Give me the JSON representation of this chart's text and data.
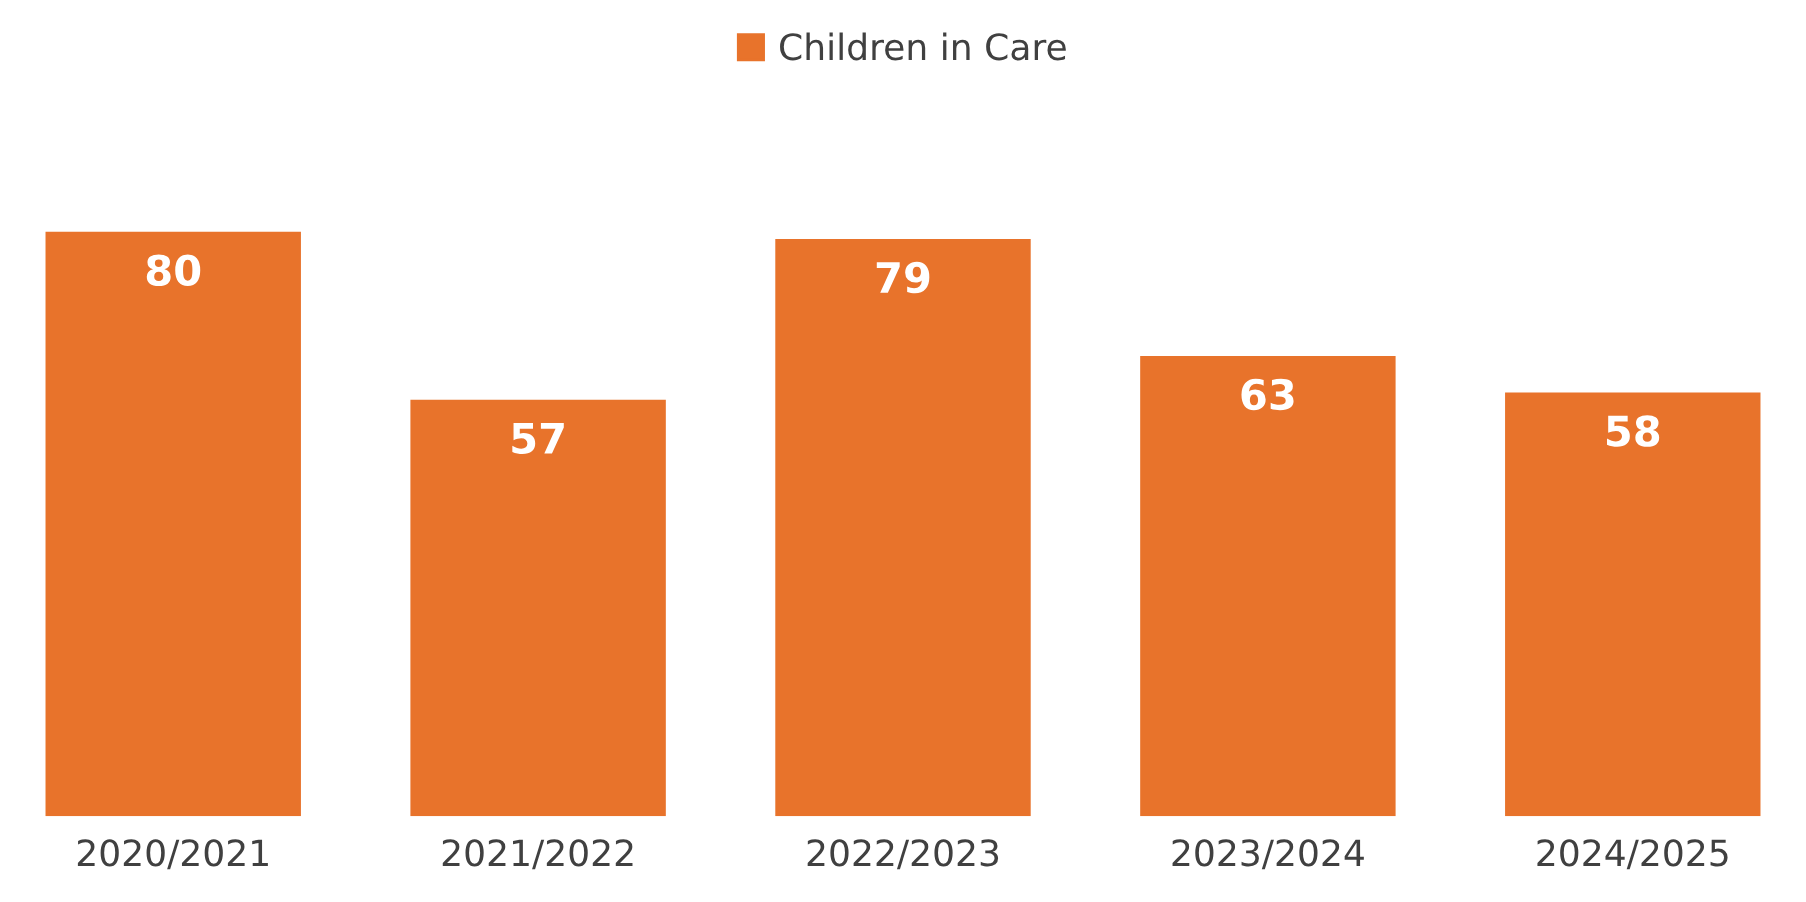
{
  "chart_data": {
    "type": "bar",
    "categories": [
      "2020/2021",
      "2021/2022",
      "2022/2023",
      "2023/2024",
      "2024/2025"
    ],
    "series": [
      {
        "name": "Children in Care",
        "color": "#e8732b",
        "values": [
          80,
          57,
          79,
          63,
          58
        ]
      }
    ],
    "data_labels": true,
    "legend": "top",
    "grid": false
  }
}
